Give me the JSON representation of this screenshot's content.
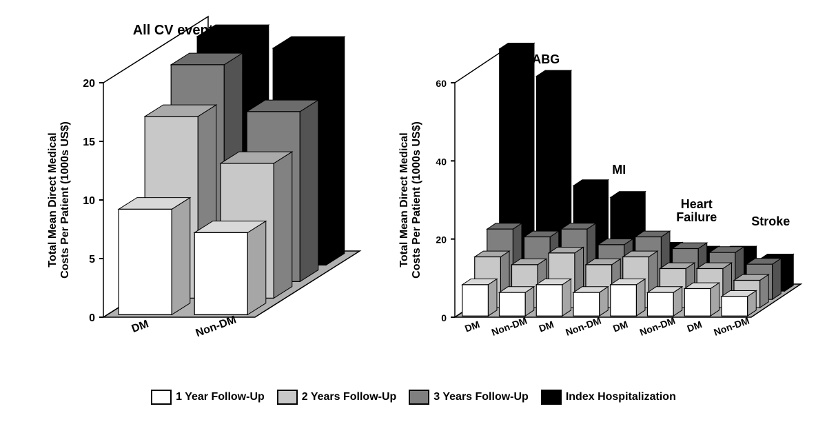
{
  "title_left": "All CV event types",
  "yaxis_label": "Total Mean Direct Medical\nCosts Per Patient (1000s US$)",
  "legend": {
    "items": [
      {
        "label": "1 Year Follow-Up",
        "color": "#ffffff"
      },
      {
        "label": "2 Years Follow-Up",
        "color": "#c8c8c8"
      },
      {
        "label": "3 Years Follow-Up",
        "color": "#7f7f7f"
      },
      {
        "label": "Index Hospitalization",
        "color": "#000000"
      }
    ],
    "stroke": "#000000",
    "fontsize": 16,
    "fontweight": "bold"
  },
  "left_chart": {
    "type": "bar3d",
    "ylim": [
      0,
      20
    ],
    "ytick_step": 5,
    "yticks": [
      0,
      5,
      10,
      15,
      20
    ],
    "categories": [
      "DM",
      "Non-DM"
    ],
    "series_colors": [
      "#ffffff",
      "#c8c8c8",
      "#7f7f7f",
      "#000000"
    ],
    "series_labels": [
      "1 Year Follow-Up",
      "2 Years Follow-Up",
      "3 Years Follow-Up",
      "Index Hospitalization"
    ],
    "values": {
      "DM": [
        9.0,
        15.5,
        18.5,
        19.5
      ],
      "Non-DM": [
        7.0,
        11.5,
        14.5,
        18.5
      ]
    },
    "title_fontsize": 20,
    "axis_label_fontsize": 16,
    "tick_fontsize": 16,
    "bar_depth": 0.7,
    "bar_width": 0.7,
    "floor_color": "#b0b0b0",
    "stroke": "#000000"
  },
  "right_chart": {
    "type": "bar3d",
    "ylim": [
      0,
      60
    ],
    "ytick_step": 20,
    "yticks": [
      0,
      20,
      40,
      60
    ],
    "group_labels": [
      "CABG",
      "MI",
      "Heart\nFailure",
      "Stroke"
    ],
    "categories": [
      "DM",
      "Non-DM",
      "DM",
      "Non-DM",
      "DM",
      "Non-DM",
      "DM",
      "Non-DM"
    ],
    "series_colors": [
      "#ffffff",
      "#c8c8c8",
      "#7f7f7f",
      "#000000"
    ],
    "series_labels": [
      "1 Year Follow-Up",
      "2 Years Follow-Up",
      "3 Years Follow-Up",
      "Index Hospitalization"
    ],
    "values": {
      "CABG_DM": [
        8,
        13,
        18,
        62
      ],
      "CABG_Non-DM": [
        6,
        11,
        16,
        55
      ],
      "MI_DM": [
        8,
        14,
        18,
        27
      ],
      "MI_Non-DM": [
        6,
        11,
        14,
        24
      ],
      "HF_DM": [
        8,
        13,
        16,
        11
      ],
      "HF_Non-DM": [
        6,
        10,
        13,
        10
      ],
      "Stroke_DM": [
        7,
        10,
        12,
        10
      ],
      "Stroke_Non-DM": [
        5,
        7,
        9,
        8
      ]
    },
    "title_fontsize": 18,
    "axis_label_fontsize": 16,
    "tick_fontsize": 14,
    "bar_depth": 0.7,
    "bar_width": 0.7,
    "floor_color": "#b0b0b0",
    "stroke": "#000000"
  },
  "colors": {
    "background": "#ffffff",
    "text": "#000000"
  }
}
